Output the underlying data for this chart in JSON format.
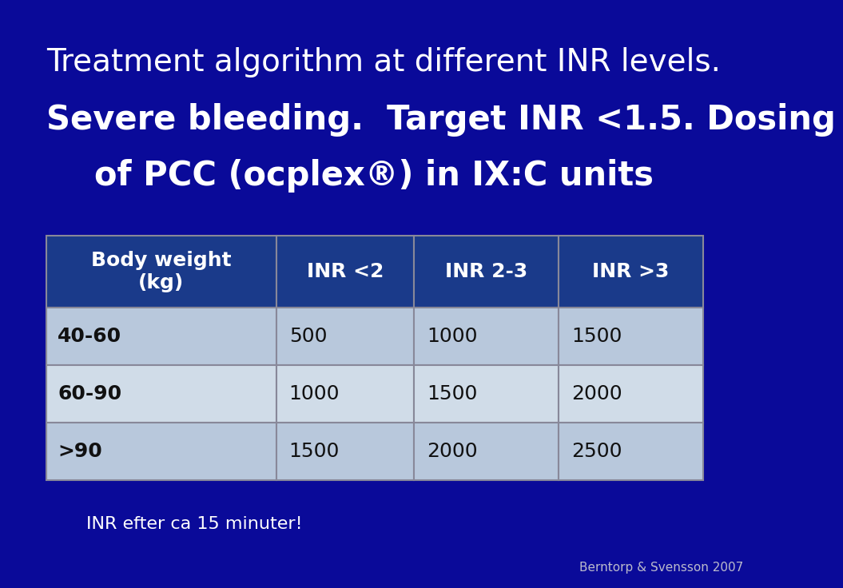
{
  "title_line1": "Treatment algorithm at different INR levels.",
  "title_line2": "Severe bleeding.  Target INR <1.5. Dosing",
  "title_line3": "of PCC (ocplex®) in IX:C units",
  "header_row": [
    "Body weight\n(kg)",
    "INR <2",
    "INR 2-3",
    "INR >3"
  ],
  "data_rows": [
    [
      "40-60",
      "500",
      "1000",
      "1500"
    ],
    [
      "60-90",
      "1000",
      "1500",
      "2000"
    ],
    [
      ">90",
      "1500",
      "2000",
      "2500"
    ]
  ],
  "footnote": "INR efter ca 15 minuter!",
  "attribution": "Berntorp & Svensson 2007",
  "bg_color": "#0A0A99",
  "header_bg": "#1A3A8A",
  "row_bg_odd": "#B8C8DC",
  "row_bg_even": "#D0DCE8",
  "header_text_color": "#FFFFFF",
  "data_text_color": "#111111",
  "title_color": "#FFFFFF",
  "footnote_color": "#FFFFFF",
  "attribution_color": "#BBBBCC",
  "table_border_color": "#888899"
}
